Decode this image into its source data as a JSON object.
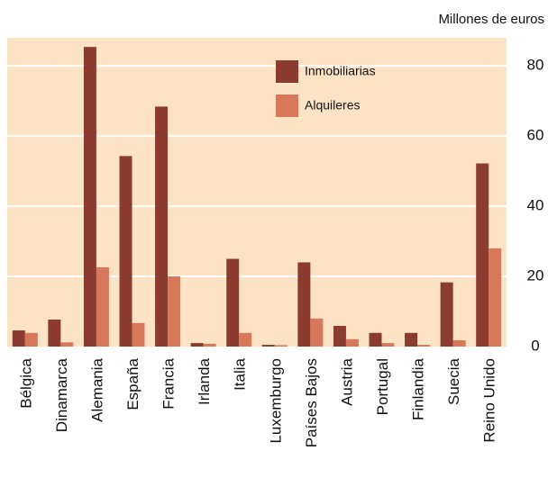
{
  "chart_data": {
    "type": "bar",
    "unit_label": "Millones de euros",
    "categories": [
      "Bélgica",
      "Dinamarca",
      "Alemania",
      "España",
      "Francia",
      "Irlanda",
      "Italia",
      "Luxemburgo",
      "Países Bajos",
      "Austria",
      "Portugal",
      "Finlandia",
      "Suecia",
      "Reino Unido"
    ],
    "series": [
      {
        "name": "Inmobiliarias",
        "color": "#8c3b2f",
        "values": [
          4.6,
          7.7,
          85.4,
          54.3,
          68.4,
          1.0,
          25.0,
          0.5,
          24.0,
          5.9,
          3.9,
          3.9,
          18.3,
          52.2
        ]
      },
      {
        "name": "Alquileres",
        "color": "#d8785a",
        "values": [
          3.9,
          1.2,
          22.6,
          6.7,
          20.0,
          0.8,
          3.9,
          0.4,
          8.0,
          2.1,
          1.0,
          0.5,
          1.8,
          28.0
        ]
      }
    ],
    "ylim": [
      0,
      88
    ],
    "yticks": [
      0,
      20,
      40,
      60,
      80
    ],
    "grid": true,
    "legend": "top-right"
  }
}
